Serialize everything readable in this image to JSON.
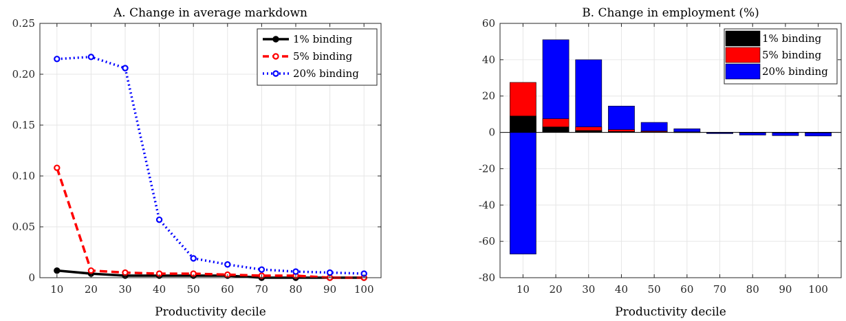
{
  "chart_data": [
    {
      "type": "line",
      "title": "A. Change in average markdown",
      "xlabel": "Productivity decile",
      "ylabel": "",
      "x": [
        10,
        20,
        30,
        40,
        50,
        60,
        70,
        80,
        90,
        100
      ],
      "xlim": [
        5,
        105
      ],
      "ylim": [
        0,
        0.25
      ],
      "yticks": [
        "0",
        "0.05",
        "0.10",
        "0.15",
        "0.20",
        "0.25"
      ],
      "ytick_values": [
        0,
        0.05,
        0.1,
        0.15,
        0.2,
        0.25
      ],
      "grid": true,
      "legend_position": "top-right",
      "series": [
        {
          "name": "1% binding",
          "color": "#000000",
          "style": "solid",
          "marker": "filled-circle",
          "values": [
            0.007,
            0.004,
            0.002,
            0.002,
            0.002,
            0.002,
            0.0,
            0.0,
            0.0,
            0.0
          ]
        },
        {
          "name": "5% binding",
          "color": "#ff0000",
          "style": "dashed",
          "marker": "open-circle",
          "values": [
            0.108,
            0.007,
            0.005,
            0.004,
            0.004,
            0.003,
            0.002,
            0.002,
            0.0,
            0.0
          ]
        },
        {
          "name": "20% binding",
          "color": "#0000ff",
          "style": "dotted",
          "marker": "open-circle",
          "values": [
            0.215,
            0.217,
            0.206,
            0.057,
            0.019,
            0.013,
            0.008,
            0.006,
            0.005,
            0.004
          ]
        }
      ]
    },
    {
      "type": "bar",
      "title": "B. Change in employment (%)",
      "xlabel": "Productivity decile",
      "ylabel": "",
      "categories": [
        "10",
        "20",
        "30",
        "40",
        "50",
        "60",
        "70",
        "80",
        "90",
        "100"
      ],
      "ylim": [
        -80,
        60
      ],
      "yticks": [
        "-80",
        "-60",
        "-40",
        "-20",
        "0",
        "20",
        "40",
        "60"
      ],
      "ytick_values": [
        -80,
        -60,
        -40,
        -20,
        0,
        20,
        40,
        60
      ],
      "grid": true,
      "legend_position": "top-right",
      "overlapping": true,
      "series": [
        {
          "name": "20% binding",
          "color": "#0000ff",
          "values": [
            -67,
            51,
            40,
            14.5,
            5.5,
            2,
            -0.7,
            -1.5,
            -1.8,
            -2
          ]
        },
        {
          "name": "5% binding",
          "color": "#ff0000",
          "values": [
            27.5,
            7.5,
            3,
            1.5,
            0.7,
            0.3,
            -0.1,
            -0.1,
            -0.1,
            -0.1
          ]
        },
        {
          "name": "1% binding",
          "color": "#000000",
          "values": [
            9,
            3,
            1,
            0.5,
            0.3,
            0.1,
            0,
            0,
            0,
            0
          ]
        }
      ],
      "legend_order": [
        "1% binding",
        "5% binding",
        "20% binding"
      ]
    }
  ]
}
